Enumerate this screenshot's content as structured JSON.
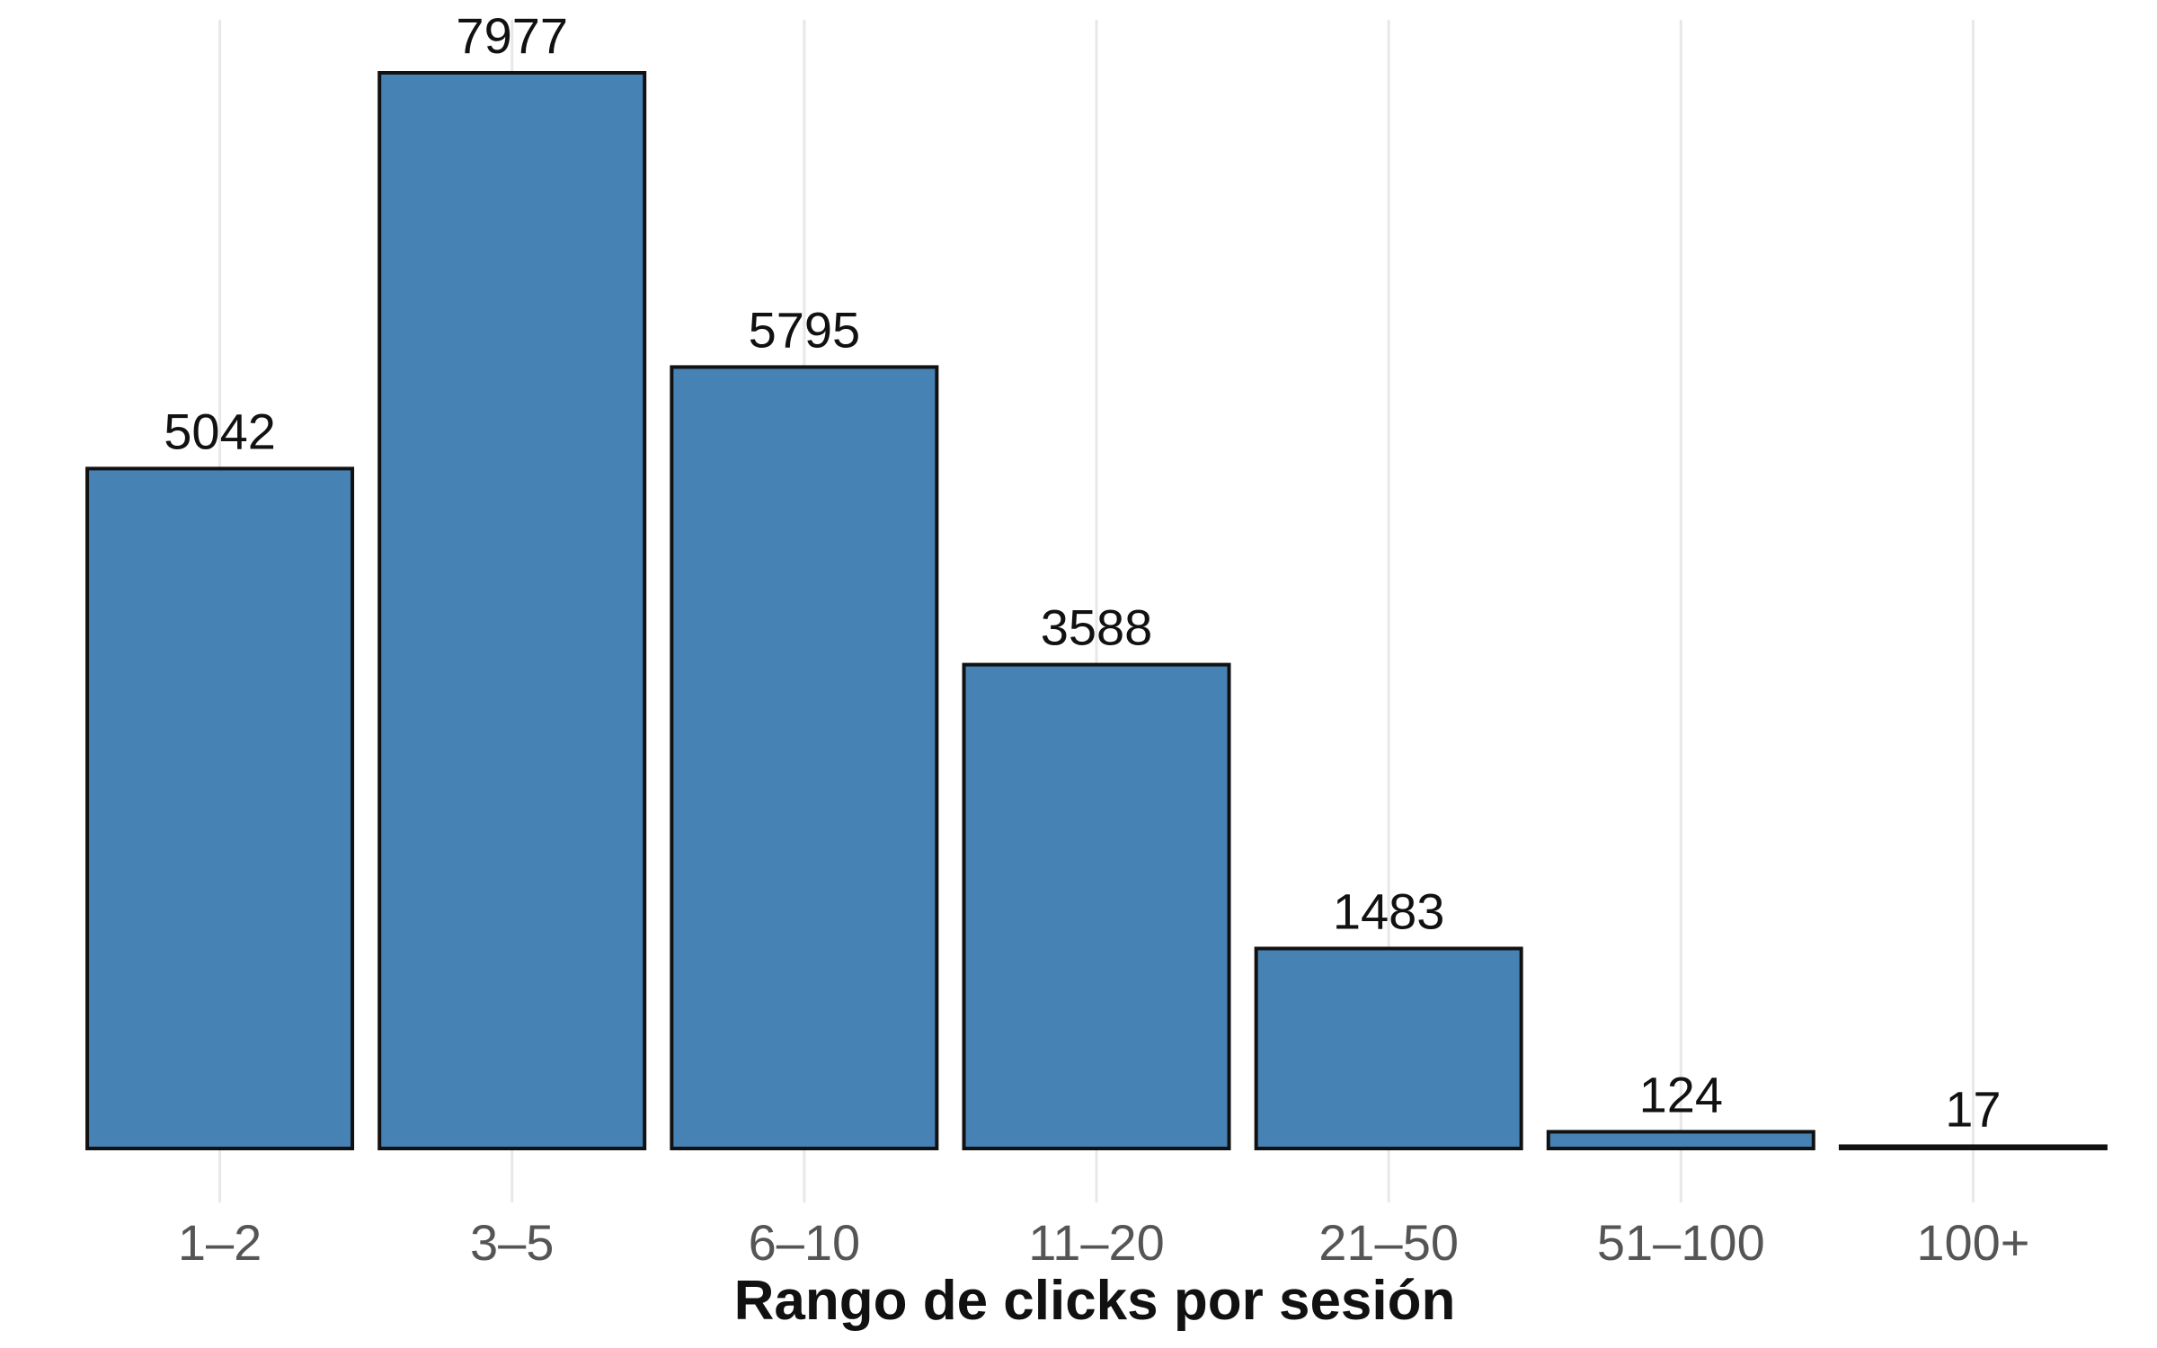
{
  "chart_data": {
    "type": "bar",
    "categories": [
      "1–2",
      "3–5",
      "6–10",
      "11–20",
      "21–50",
      "51–100",
      "100+"
    ],
    "values": [
      5042,
      7977,
      5795,
      3588,
      1483,
      124,
      17
    ],
    "data_labels": [
      "5042",
      "7977",
      "5795",
      "3588",
      "1483",
      "124",
      "17"
    ],
    "title": "",
    "xlabel": "Rango de clicks por sesión",
    "ylabel": "",
    "ylim": [
      0,
      7977
    ],
    "grid": "vertical",
    "legend": "none",
    "colors": {
      "bar_fill": "#4682B4",
      "bar_stroke": "#111111",
      "grid": "#e8e8e8"
    }
  }
}
